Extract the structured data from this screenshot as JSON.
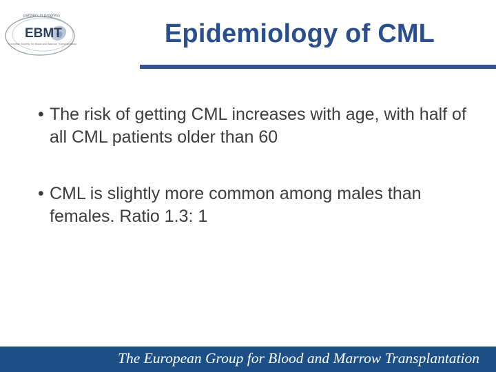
{
  "logo": {
    "tagline": "partners in progress",
    "name": "EBMT",
    "subtitle": "European Society for Blood and Marrow Transplantation"
  },
  "title": "Epidemiology of CML",
  "bullets": [
    {
      "marker": "•",
      "text": "The risk of getting CML increases with age, with half of all CML patients older than 60"
    },
    {
      "marker": "•",
      "text": "CML is slightly more common among males than females. Ratio 1.3: 1"
    }
  ],
  "footer": {
    "text": "The European Group for Blood and Marrow Transplantation"
  },
  "colors": {
    "title": "#2b4f8e",
    "rule": "#2f5597",
    "footer_bg": "#1c4f86",
    "body_text": "#3d3d3d"
  }
}
